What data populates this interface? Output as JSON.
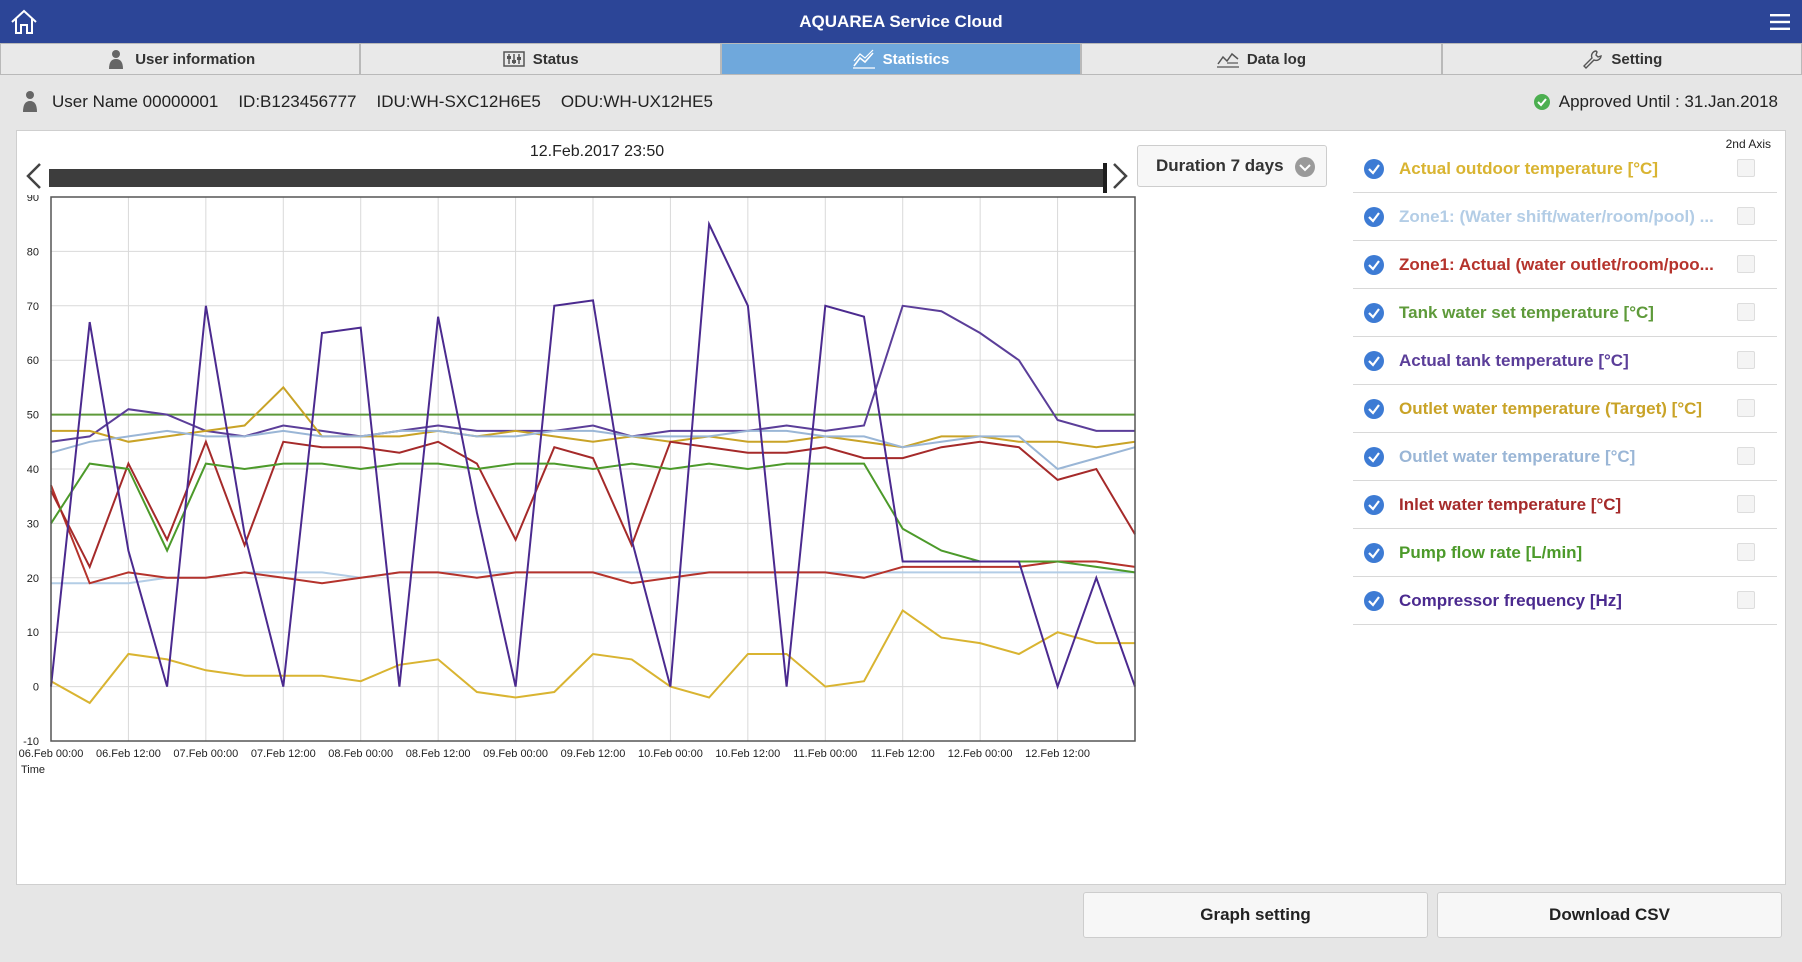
{
  "app": {
    "title": "AQUAREA Service Cloud"
  },
  "tabs": [
    {
      "label": "User information",
      "icon": "user-icon"
    },
    {
      "label": "Status",
      "icon": "sliders-icon"
    },
    {
      "label": "Statistics",
      "icon": "chart-line-icon",
      "active": true
    },
    {
      "label": "Data log",
      "icon": "data-log-icon"
    },
    {
      "label": "Setting",
      "icon": "wrench-icon"
    }
  ],
  "user": {
    "name": "User Name 00000001",
    "id": "ID:B123456777",
    "idu": "IDU:WH-SXC12H6E5",
    "odu": "ODU:WH-UX12HE5",
    "approved": "Approved Until : 31.Jan.2018"
  },
  "graph": {
    "date_label": "12.Feb.2017 23:50",
    "duration_label": "Duration 7 days",
    "second_axis_label": "2nd Axis"
  },
  "legend": [
    {
      "label": "Actual outdoor temperature [°C]",
      "color": "#d9b431"
    },
    {
      "label": "Zone1: (Water shift/water/room/pool) ...",
      "color": "#b3cde6"
    },
    {
      "label": "Zone1: Actual (water outlet/room/poo...",
      "color": "#b5332c"
    },
    {
      "label": "Tank water set temperature [°C]",
      "color": "#5e9a3a"
    },
    {
      "label": "Actual tank temperature [°C]",
      "color": "#5b3e99"
    },
    {
      "label": "Outlet water temperature (Target) [°C]",
      "color": "#c9a327"
    },
    {
      "label": "Outlet water temperature [°C]",
      "color": "#9ab6d6"
    },
    {
      "label": "Inlet water temperature [°C]",
      "color": "#a52a2a"
    },
    {
      "label": "Pump flow rate [L/min]",
      "color": "#4c9a2a"
    },
    {
      "label": "Compressor frequency [Hz]",
      "color": "#4b2a8f"
    }
  ],
  "buttons": {
    "graph_setting": "Graph setting",
    "download_csv": "Download CSV"
  },
  "chart_data": {
    "type": "line",
    "xlabel": "Time",
    "ylim": [
      -10,
      90
    ],
    "yticks": [
      -10,
      0,
      10,
      20,
      30,
      40,
      50,
      60,
      70,
      80,
      90
    ],
    "xticks": [
      "06.Feb 00:00",
      "06.Feb 12:00",
      "07.Feb 00:00",
      "07.Feb 12:00",
      "08.Feb 00:00",
      "08.Feb 12:00",
      "09.Feb 00:00",
      "09.Feb 12:00",
      "10.Feb 00:00",
      "10.Feb 12:00",
      "11.Feb 00:00",
      "11.Feb 12:00",
      "12.Feb 00:00",
      "12.Feb 12:00"
    ],
    "grid": true,
    "x_hours": [
      0,
      6,
      12,
      18,
      24,
      30,
      36,
      42,
      48,
      54,
      60,
      66,
      72,
      78,
      84,
      90,
      96,
      102,
      108,
      114,
      120,
      126,
      132,
      138,
      144,
      150,
      156,
      162,
      168
    ],
    "series": [
      {
        "name": "Actual outdoor temperature [°C]",
        "color": "#d9b431",
        "values": [
          1,
          -3,
          6,
          5,
          3,
          2,
          2,
          2,
          1,
          4,
          5,
          -1,
          -2,
          -1,
          6,
          5,
          0,
          -2,
          6,
          6,
          0,
          1,
          14,
          9,
          8,
          6,
          10,
          8,
          8
        ]
      },
      {
        "name": "Zone1: (Water shift/water/room/pool) ...",
        "color": "#b3cde6",
        "values": [
          19,
          19,
          19,
          20,
          20,
          21,
          21,
          21,
          20,
          21,
          21,
          21,
          21,
          21,
          21,
          21,
          21,
          21,
          21,
          21,
          21,
          21,
          21,
          21,
          21,
          21,
          21,
          21,
          21
        ]
      },
      {
        "name": "Zone1: Actual (water outlet/room/poo...",
        "color": "#b5332c",
        "values": [
          37,
          19,
          21,
          20,
          20,
          21,
          20,
          19,
          20,
          21,
          21,
          20,
          21,
          21,
          21,
          19,
          20,
          21,
          21,
          21,
          21,
          20,
          22,
          22,
          22,
          22,
          23,
          23,
          22
        ]
      },
      {
        "name": "Tank water set temperature [°C]",
        "color": "#5e9a3a",
        "values": [
          50,
          50,
          50,
          50,
          50,
          50,
          50,
          50,
          50,
          50,
          50,
          50,
          50,
          50,
          50,
          50,
          50,
          50,
          50,
          50,
          50,
          50,
          50,
          50,
          50,
          50,
          50,
          50,
          50
        ]
      },
      {
        "name": "Actual tank temperature [°C]",
        "color": "#5b3e99",
        "values": [
          45,
          46,
          51,
          50,
          47,
          46,
          48,
          47,
          46,
          47,
          48,
          47,
          47,
          47,
          48,
          46,
          47,
          47,
          47,
          48,
          47,
          48,
          70,
          69,
          65,
          60,
          49,
          47,
          47
        ]
      },
      {
        "name": "Outlet water temperature (Target) [°C]",
        "color": "#c9a327",
        "values": [
          47,
          47,
          45,
          46,
          47,
          48,
          55,
          46,
          46,
          46,
          47,
          46,
          47,
          46,
          45,
          46,
          45,
          46,
          45,
          45,
          46,
          45,
          44,
          46,
          46,
          45,
          45,
          44,
          45
        ]
      },
      {
        "name": "Outlet water temperature [°C]",
        "color": "#9ab6d6",
        "values": [
          43,
          45,
          46,
          47,
          46,
          46,
          47,
          46,
          46,
          47,
          47,
          46,
          46,
          47,
          47,
          46,
          46,
          46,
          47,
          47,
          46,
          46,
          44,
          45,
          46,
          46,
          40,
          42,
          44
        ]
      },
      {
        "name": "Inlet water temperature [°C]",
        "color": "#a52a2a",
        "values": [
          36,
          22,
          41,
          27,
          45,
          26,
          45,
          44,
          44,
          43,
          45,
          41,
          27,
          44,
          42,
          26,
          45,
          44,
          43,
          43,
          44,
          42,
          42,
          44,
          45,
          44,
          38,
          40,
          28
        ]
      },
      {
        "name": "Pump flow rate [L/min]",
        "color": "#4c9a2a",
        "values": [
          30,
          41,
          40,
          25,
          41,
          40,
          41,
          41,
          40,
          41,
          41,
          40,
          41,
          41,
          40,
          41,
          40,
          41,
          40,
          41,
          41,
          41,
          29,
          25,
          23,
          23,
          23,
          22,
          21
        ]
      },
      {
        "name": "Compressor frequency [Hz]",
        "color": "#4b2a8f",
        "values": [
          0,
          67,
          25,
          0,
          70,
          28,
          0,
          65,
          66,
          0,
          68,
          32,
          0,
          70,
          71,
          27,
          0,
          85,
          70,
          0,
          70,
          68,
          23,
          23,
          23,
          23,
          0,
          20,
          0
        ]
      }
    ]
  }
}
